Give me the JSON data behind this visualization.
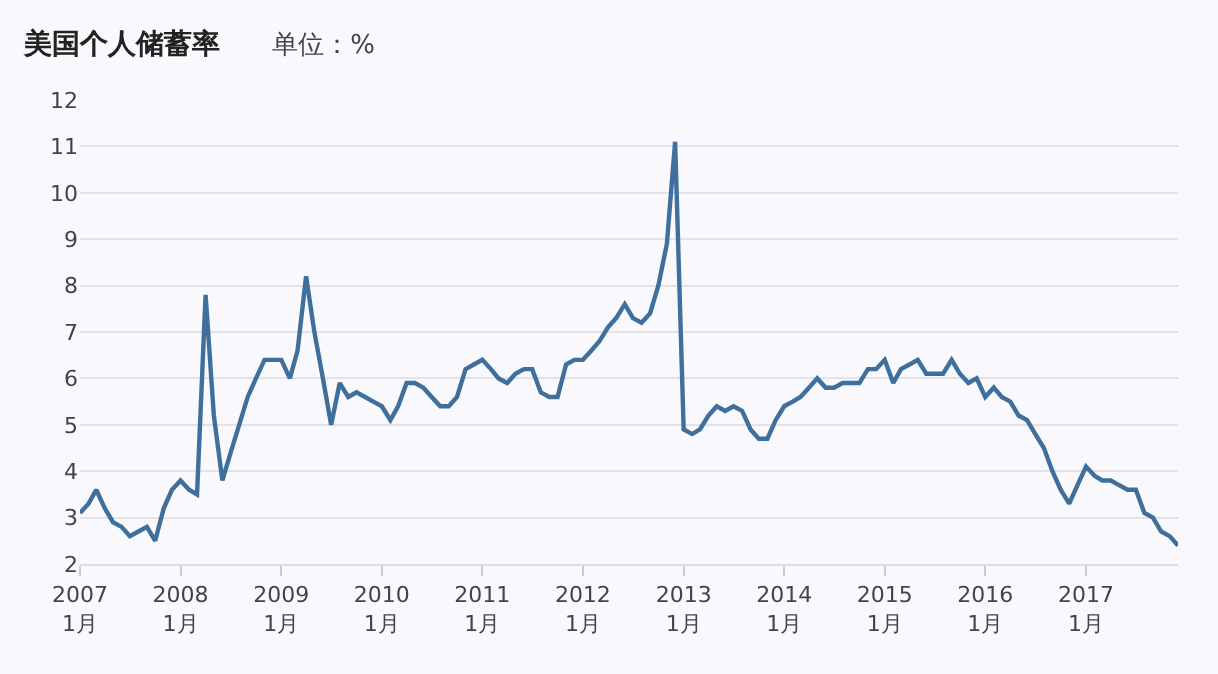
{
  "chart_data": {
    "type": "line",
    "title": "美国个人储蓄率",
    "subtitle": "单位：%",
    "x": [
      "2007-01",
      "2007-02",
      "2007-03",
      "2007-04",
      "2007-05",
      "2007-06",
      "2007-07",
      "2007-08",
      "2007-09",
      "2007-10",
      "2007-11",
      "2007-12",
      "2008-01",
      "2008-02",
      "2008-03",
      "2008-04",
      "2008-05",
      "2008-06",
      "2008-07",
      "2008-08",
      "2008-09",
      "2008-10",
      "2008-11",
      "2008-12",
      "2009-01",
      "2009-02",
      "2009-03",
      "2009-04",
      "2009-05",
      "2009-06",
      "2009-07",
      "2009-08",
      "2009-09",
      "2009-10",
      "2009-11",
      "2009-12",
      "2010-01",
      "2010-02",
      "2010-03",
      "2010-04",
      "2010-05",
      "2010-06",
      "2010-07",
      "2010-08",
      "2010-09",
      "2010-10",
      "2010-11",
      "2010-12",
      "2011-01",
      "2011-02",
      "2011-03",
      "2011-04",
      "2011-05",
      "2011-06",
      "2011-07",
      "2011-08",
      "2011-09",
      "2011-10",
      "2011-11",
      "2011-12",
      "2012-01",
      "2012-02",
      "2012-03",
      "2012-04",
      "2012-05",
      "2012-06",
      "2012-07",
      "2012-08",
      "2012-09",
      "2012-10",
      "2012-11",
      "2012-12",
      "2013-01",
      "2013-02",
      "2013-03",
      "2013-04",
      "2013-05",
      "2013-06",
      "2013-07",
      "2013-08",
      "2013-09",
      "2013-10",
      "2013-11",
      "2013-12",
      "2014-01",
      "2014-02",
      "2014-03",
      "2014-04",
      "2014-05",
      "2014-06",
      "2014-07",
      "2014-08",
      "2014-09",
      "2014-10",
      "2014-11",
      "2014-12",
      "2015-01",
      "2015-02",
      "2015-03",
      "2015-04",
      "2015-05",
      "2015-06",
      "2015-07",
      "2015-08",
      "2015-09",
      "2015-10",
      "2015-11",
      "2015-12",
      "2016-01",
      "2016-02",
      "2016-03",
      "2016-04",
      "2016-05",
      "2016-06",
      "2016-07",
      "2016-08",
      "2016-09",
      "2016-10",
      "2016-11",
      "2016-12",
      "2017-01",
      "2017-02",
      "2017-03",
      "2017-04",
      "2017-05",
      "2017-06",
      "2017-07",
      "2017-08",
      "2017-09",
      "2017-10",
      "2017-11",
      "2017-12"
    ],
    "series": [
      {
        "color": "#3f6f9c",
        "values": [
          3.1,
          3.3,
          3.6,
          3.2,
          2.9,
          2.8,
          2.6,
          2.7,
          2.8,
          2.5,
          3.2,
          3.6,
          3.8,
          3.6,
          3.5,
          7.8,
          5.2,
          3.8,
          4.4,
          5.0,
          5.6,
          6.0,
          6.4,
          6.4,
          6.4,
          6.0,
          6.6,
          8.2,
          7.0,
          6.0,
          5.0,
          5.9,
          5.6,
          5.7,
          5.6,
          5.5,
          5.4,
          5.1,
          5.4,
          5.9,
          5.9,
          5.8,
          5.6,
          5.4,
          5.4,
          5.6,
          6.2,
          6.3,
          6.4,
          6.2,
          6.0,
          5.9,
          6.1,
          6.2,
          6.2,
          5.7,
          5.6,
          5.6,
          6.3,
          6.4,
          6.4,
          6.6,
          6.8,
          7.1,
          7.3,
          7.6,
          7.3,
          7.2,
          7.4,
          8.0,
          8.9,
          11.1,
          4.9,
          4.8,
          4.9,
          5.2,
          5.4,
          5.3,
          5.4,
          5.3,
          4.9,
          4.7,
          4.7,
          5.1,
          5.4,
          5.5,
          5.6,
          5.8,
          6.0,
          5.8,
          5.8,
          5.9,
          5.9,
          5.9,
          6.2,
          6.2,
          6.4,
          5.9,
          6.2,
          6.3,
          6.4,
          6.1,
          6.1,
          6.1,
          6.4,
          6.1,
          5.9,
          6.0,
          5.6,
          5.8,
          5.6,
          5.5,
          5.2,
          5.1,
          4.8,
          4.5,
          4.0,
          3.6,
          3.3,
          3.7,
          4.1,
          3.9,
          3.8,
          3.8,
          3.7,
          3.6,
          3.6,
          3.1,
          3.0,
          2.7,
          2.6,
          2.4
        ]
      }
    ],
    "xlim": [
      "2007-01",
      "2017-12"
    ],
    "xticks": [
      {
        "value": "2007-01",
        "label": "2007\n1月"
      },
      {
        "value": "2008-01",
        "label": "2008\n1月"
      },
      {
        "value": "2009-01",
        "label": "2009\n1月"
      },
      {
        "value": "2010-01",
        "label": "2010\n1月"
      },
      {
        "value": "2011-01",
        "label": "2011\n1月"
      },
      {
        "value": "2012-01",
        "label": "2012\n1月"
      },
      {
        "value": "2013-01",
        "label": "2013\n1月"
      },
      {
        "value": "2014-01",
        "label": "2014\n1月"
      },
      {
        "value": "2015-01",
        "label": "2015\n1月"
      },
      {
        "value": "2016-01",
        "label": "2016\n1月"
      },
      {
        "value": "2017-01",
        "label": "2017\n1月"
      }
    ],
    "ylim": [
      2,
      12
    ],
    "yticks": [
      2,
      3,
      4,
      5,
      6,
      7,
      8,
      9,
      10,
      11,
      12
    ],
    "grid": "y",
    "marker": "none",
    "line_style": "solid"
  }
}
